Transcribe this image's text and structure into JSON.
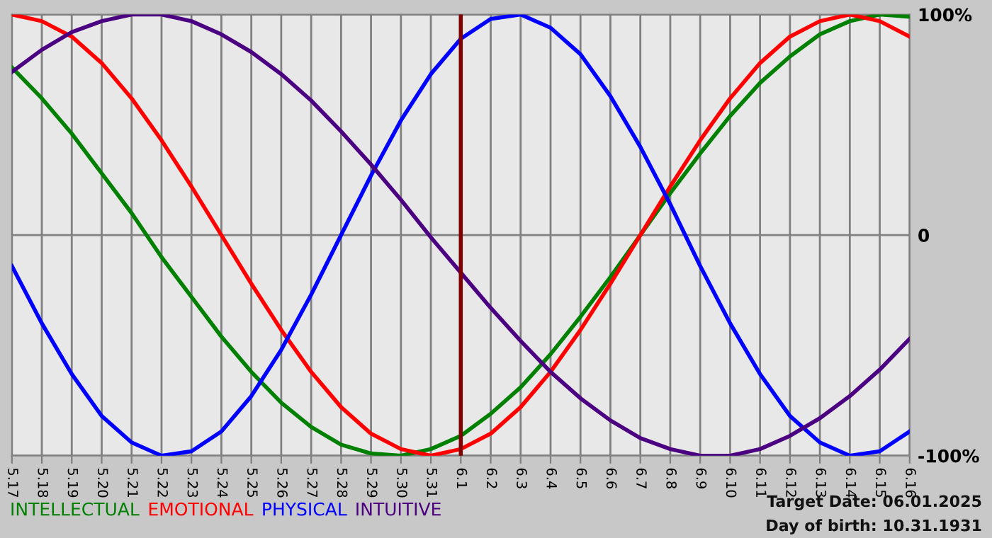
{
  "chart_data": {
    "type": "line",
    "categories": [
      "5.17",
      "5.18",
      "5.19",
      "5.20",
      "5.21",
      "5.22",
      "5.23",
      "5.24",
      "5.25",
      "5.26",
      "5.27",
      "5.28",
      "5.29",
      "5.30",
      "5.31",
      "6.1",
      "6.2",
      "6.3",
      "6.4",
      "6.5",
      "6.6",
      "6.7",
      "6.8",
      "6.9",
      "6.10",
      "6.11",
      "6.12",
      "6.13",
      "6.14",
      "6.15",
      "6.16"
    ],
    "series": [
      {
        "name": "INTELLECTUAL",
        "color": "#008000",
        "values": [
          76,
          62,
          46,
          28,
          10,
          -10,
          -28,
          -46,
          -62,
          -76,
          -87,
          -95,
          -99,
          -100,
          -97,
          -91,
          -81,
          -69,
          -54,
          -37,
          -19,
          0,
          19,
          37,
          54,
          69,
          81,
          91,
          97,
          100,
          99
        ]
      },
      {
        "name": "EMOTIONAL",
        "color": "#ff0000",
        "values": [
          100,
          97,
          90,
          78,
          62,
          43,
          22,
          0,
          -22,
          -43,
          -62,
          -78,
          -90,
          -97,
          -100,
          -97,
          -90,
          -78,
          -62,
          -43,
          -22,
          0,
          22,
          43,
          62,
          78,
          90,
          97,
          100,
          97,
          90
        ]
      },
      {
        "name": "PHYSICAL",
        "color": "#0000ff",
        "values": [
          -14,
          -40,
          -63,
          -82,
          -94,
          -100,
          -98,
          -89,
          -73,
          -52,
          -27,
          0,
          27,
          52,
          73,
          89,
          98,
          100,
          94,
          82,
          63,
          40,
          14,
          -14,
          -40,
          -63,
          -82,
          -94,
          -100,
          -98,
          -89
        ]
      },
      {
        "name": "INTUITIVE",
        "color": "#4b0082",
        "values": [
          74,
          84,
          92,
          97,
          100,
          100,
          97,
          91,
          83,
          73,
          61,
          47,
          32,
          16,
          -1,
          -17,
          -33,
          -48,
          -62,
          -74,
          -84,
          -92,
          -97,
          -100,
          -100,
          -97,
          -91,
          -83,
          -73,
          -61,
          -47
        ]
      }
    ],
    "ylim": [
      -100,
      100
    ],
    "yticks": [
      {
        "value": 100,
        "label": "100%"
      },
      0,
      {
        "value": -100,
        "label": "-100%"
      }
    ],
    "ref_lines": [
      {
        "axis": "x",
        "value": "6.1",
        "color": "#800000"
      }
    ],
    "annotations": [
      "Target Date: 06.01.2025",
      "Day of birth: 10.31.1931"
    ],
    "grid": true,
    "legend": "bottom left",
    "marker": "none",
    "line_style": "solid"
  }
}
